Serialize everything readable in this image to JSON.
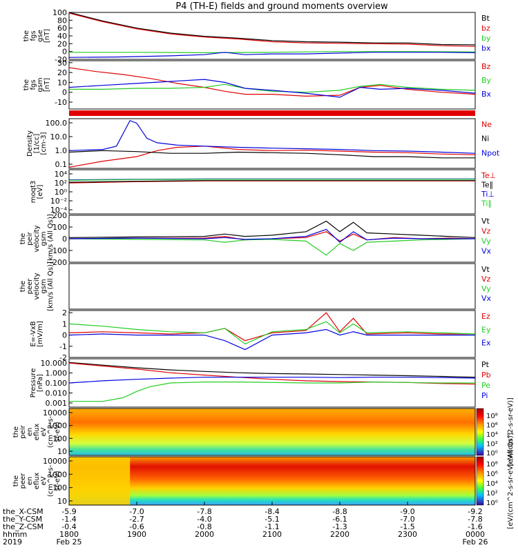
{
  "title": "P4 (TH-E) fields and ground moments overview",
  "chart_data": [
    {
      "id": "fgs_gse",
      "type": "line",
      "ylabel": [
        "the",
        "fgs",
        "gse",
        "[nT]"
      ],
      "ylim": [
        -20,
        100
      ],
      "yticks": [
        100,
        80,
        60,
        40,
        20,
        0,
        -20
      ],
      "series": [
        {
          "name": "Bt",
          "color": "#000000",
          "x": [
            18.0,
            18.5,
            19.0,
            19.5,
            20.0,
            20.5,
            21.0,
            21.5,
            22.0,
            22.5,
            23.0,
            23.5,
            24.0
          ],
          "y": [
            100,
            78,
            60,
            47,
            39,
            34,
            28,
            25,
            24,
            22,
            22,
            18,
            17
          ]
        },
        {
          "name": "bz",
          "color": "#e00000",
          "x": [
            18.0,
            18.5,
            19.0,
            19.5,
            20.0,
            20.5,
            21.0,
            21.5,
            22.0,
            22.5,
            23.0,
            23.5,
            24.0
          ],
          "y": [
            98,
            76,
            58,
            45,
            37,
            32,
            25,
            22,
            21,
            20,
            19,
            15,
            13
          ]
        },
        {
          "name": "by",
          "color": "#22cc22",
          "x": [
            18.0,
            19.0,
            20.0,
            21.0,
            22.0,
            23.0,
            24.0
          ],
          "y": [
            -2,
            -2,
            -3,
            -2,
            0,
            0,
            -1
          ]
        },
        {
          "name": "bx",
          "color": "#0000dd",
          "x": [
            18.0,
            18.7,
            19.0,
            19.5,
            20.0,
            20.3,
            20.6,
            21.0,
            21.5,
            22.0,
            22.5,
            23.0,
            23.5,
            24.0
          ],
          "y": [
            -15,
            -14,
            -13,
            -11,
            -8,
            -2,
            -8,
            -6,
            -6,
            -4,
            -2,
            -2,
            -2,
            -3
          ]
        }
      ]
    },
    {
      "id": "fgs_gsm",
      "type": "line",
      "ylabel": [
        "the",
        "fgs",
        "gsm",
        "[nT]"
      ],
      "ylim": [
        -17,
        32
      ],
      "yticks": [
        30,
        20,
        10,
        0,
        -10
      ],
      "series": [
        {
          "name": "Bz",
          "color": "#e00000",
          "x": [
            18.0,
            18.4,
            18.8,
            19.2,
            19.6,
            20.0,
            20.3,
            20.6,
            21.0,
            21.5,
            22.0,
            22.3,
            22.6,
            23.0,
            23.5,
            24.0
          ],
          "y": [
            25,
            21,
            18,
            14,
            9,
            5,
            1,
            -2,
            -2,
            -4,
            -3,
            5,
            7,
            3,
            0,
            -2
          ]
        },
        {
          "name": "By",
          "color": "#22cc22",
          "x": [
            18.0,
            18.5,
            19.0,
            19.5,
            20.0,
            20.3,
            20.6,
            21.0,
            21.5,
            22.0,
            22.3,
            22.6,
            23.0,
            23.5,
            24.0
          ],
          "y": [
            3,
            3,
            4,
            4,
            5,
            8,
            4,
            1,
            0,
            2,
            6,
            8,
            5,
            3,
            2
          ]
        },
        {
          "name": "Bx",
          "color": "#0000dd",
          "x": [
            18.0,
            18.5,
            19.0,
            19.5,
            20.0,
            20.3,
            20.6,
            21.0,
            21.5,
            22.0,
            22.3,
            22.6,
            23.0,
            23.5,
            24.0
          ],
          "y": [
            5,
            7,
            9,
            11,
            13,
            10,
            4,
            2,
            -1,
            -5,
            5,
            3,
            4,
            2,
            -1
          ]
        }
      ]
    },
    {
      "id": "density",
      "type": "line",
      "yscale": "log",
      "ylabel": [
        "Density",
        "[1/cc]",
        "[cm-3]"
      ],
      "ylim": [
        0.1,
        200
      ],
      "yticks": [
        "100.0",
        "10.0",
        "1.0",
        "0.1"
      ],
      "series": [
        {
          "name": "Ne",
          "color": "#e00000",
          "x": [
            18.0,
            18.5,
            19.0,
            19.3,
            19.6,
            20.0,
            20.5,
            21.0,
            21.5,
            22.0,
            22.5,
            23.0,
            23.5,
            24.0
          ],
          "y": [
            0.12,
            0.3,
            0.6,
            1.5,
            2.5,
            3.0,
            1.8,
            1.5,
            1.6,
            1.4,
            1.2,
            1.1,
            0.9,
            0.8
          ]
        },
        {
          "name": "Ni",
          "color": "#000000",
          "x": [
            18.0,
            18.5,
            19.0,
            19.5,
            20.0,
            20.5,
            21.0,
            21.5,
            22.0,
            22.5,
            23.0,
            23.5,
            24.0
          ],
          "y": [
            1.2,
            1.5,
            1.3,
            1.0,
            1.0,
            1.2,
            1.1,
            1.0,
            0.8,
            0.6,
            0.6,
            0.5,
            0.5
          ]
        },
        {
          "name": "Npot",
          "color": "#0000dd",
          "x": [
            18.0,
            18.5,
            18.7,
            18.9,
            19.0,
            19.15,
            19.3,
            19.6,
            20.0,
            20.5,
            21.0,
            21.5,
            22.0,
            22.5,
            23.0,
            23.5,
            24.0
          ],
          "y": [
            1.5,
            1.8,
            3,
            150,
            100,
            10,
            5,
            3.5,
            3,
            2.5,
            2.2,
            2,
            1.8,
            1.5,
            1.4,
            1.2,
            1.0
          ]
        }
      ]
    },
    {
      "id": "temperature",
      "type": "line",
      "yscale": "log",
      "ylabel": [
        "moqt3",
        "[eV]"
      ],
      "ylim": [
        0.0001,
        1000000
      ],
      "yticks": [
        "10⁴",
        "10²",
        "10⁰",
        "10⁻²",
        "10⁻⁴"
      ],
      "series": [
        {
          "name": "Te⊥",
          "color": "#e00000",
          "x": [
            18.0,
            19.0,
            20.0,
            21.0,
            22.0,
            23.0,
            24.0
          ],
          "y": [
            1000,
            2000,
            3000,
            3000,
            3000,
            3000,
            3000
          ]
        },
        {
          "name": "Te∥",
          "color": "#000000",
          "x": [
            18.0,
            19.0,
            20.0,
            21.0,
            22.0,
            23.0,
            24.0
          ],
          "y": [
            1500,
            2500,
            3500,
            3500,
            3500,
            3500,
            3500
          ]
        },
        {
          "name": "Ti⊥",
          "color": "#0000dd",
          "x": [
            18.0,
            19.0,
            20.0,
            21.0,
            22.0,
            23.0,
            24.0
          ],
          "y": [
            5000,
            7000,
            8000,
            8000,
            8000,
            8000,
            8000
          ]
        },
        {
          "name": "Ti∥",
          "color": "#22cc22",
          "x": [
            18.0,
            19.0,
            20.0,
            21.0,
            22.0,
            23.0,
            24.0
          ],
          "y": [
            4000,
            6000,
            7000,
            7000,
            7000,
            7000,
            7000
          ]
        }
      ]
    },
    {
      "id": "peir_velocity",
      "type": "line",
      "ylabel": [
        "the",
        "peir",
        "velocity",
        "gsm",
        "[km/s (All Qs)]"
      ],
      "ylim": [
        -200,
        200
      ],
      "yticks": [
        200,
        100,
        0,
        -100,
        -200
      ],
      "series": [
        {
          "name": "Vt",
          "color": "#000000",
          "x": [
            18.0,
            19.0,
            20.0,
            20.3,
            20.6,
            21.0,
            21.5,
            21.8,
            22.0,
            22.2,
            22.4,
            22.8,
            23.2,
            23.6,
            24.0
          ],
          "y": [
            10,
            15,
            20,
            40,
            20,
            30,
            60,
            150,
            60,
            140,
            50,
            40,
            30,
            20,
            10
          ]
        },
        {
          "name": "Vz",
          "color": "#e00000",
          "x": [
            18.0,
            19.0,
            20.0,
            20.3,
            20.6,
            21.0,
            21.5,
            21.8,
            22.0,
            22.2,
            22.4,
            22.8,
            23.2,
            23.6,
            24.0
          ],
          "y": [
            0,
            5,
            5,
            20,
            -10,
            0,
            10,
            60,
            -20,
            40,
            -10,
            10,
            0,
            5,
            0
          ]
        },
        {
          "name": "Vy",
          "color": "#22cc22",
          "x": [
            18.0,
            19.0,
            20.0,
            20.3,
            20.6,
            21.0,
            21.5,
            21.8,
            22.0,
            22.2,
            22.4,
            22.8,
            23.2,
            23.6,
            24.0
          ],
          "y": [
            0,
            -5,
            -10,
            -30,
            -10,
            -5,
            -20,
            -140,
            -40,
            -100,
            -30,
            -20,
            -10,
            -5,
            0
          ]
        },
        {
          "name": "Vx",
          "color": "#0000dd",
          "x": [
            18.0,
            19.0,
            20.0,
            20.3,
            20.6,
            21.0,
            21.5,
            21.8,
            22.0,
            22.2,
            22.4,
            22.8,
            23.2,
            23.6,
            24.0
          ],
          "y": [
            0,
            5,
            0,
            10,
            -5,
            0,
            20,
            80,
            -30,
            60,
            -10,
            5,
            0,
            0,
            0
          ]
        }
      ]
    },
    {
      "id": "peer_velocity",
      "type": "line",
      "ylabel": [
        "the",
        "peer",
        "velocity",
        "gsm",
        "[km/s (All Qs)]"
      ],
      "yticks": [],
      "series": [
        {
          "name": "Vt",
          "color": "#000000",
          "x": [],
          "y": []
        },
        {
          "name": "Vz",
          "color": "#e00000",
          "x": [],
          "y": []
        },
        {
          "name": "Vy",
          "color": "#22cc22",
          "x": [],
          "y": []
        },
        {
          "name": "Vx",
          "color": "#0000dd",
          "x": [],
          "y": []
        }
      ]
    },
    {
      "id": "efield",
      "type": "line",
      "ylabel": [
        "E=-VxB",
        "[mV/m]"
      ],
      "ylim": [
        -2,
        2.2
      ],
      "yticks": [
        2,
        1,
        0,
        -1,
        -2
      ],
      "series": [
        {
          "name": "Ez",
          "color": "#e00000",
          "x": [
            18.0,
            18.5,
            19.0,
            19.5,
            20.0,
            20.3,
            20.6,
            21.0,
            21.5,
            21.8,
            22.0,
            22.2,
            22.4,
            23.0,
            23.5,
            24.0
          ],
          "y": [
            0.2,
            0.3,
            0.2,
            0.1,
            0.2,
            0.6,
            -0.5,
            0.2,
            0.4,
            2.0,
            0.3,
            1.5,
            0.1,
            0.2,
            0.1,
            0.1
          ]
        },
        {
          "name": "Ey",
          "color": "#22cc22",
          "x": [
            18.0,
            18.5,
            19.0,
            19.5,
            20.0,
            20.3,
            20.6,
            21.0,
            21.5,
            21.8,
            22.0,
            22.2,
            22.4,
            23.0,
            23.5,
            24.0
          ],
          "y": [
            1.0,
            0.8,
            0.5,
            0.3,
            0.2,
            0.6,
            -0.8,
            0.3,
            0.5,
            1.2,
            0.2,
            1.0,
            0.2,
            0.3,
            0.2,
            0.1
          ]
        },
        {
          "name": "Ex",
          "color": "#0000dd",
          "x": [
            18.0,
            18.5,
            19.0,
            19.5,
            20.0,
            20.3,
            20.6,
            21.0,
            21.5,
            21.8,
            22.0,
            22.2,
            22.4,
            23.0,
            23.5,
            24.0
          ],
          "y": [
            0.0,
            0.1,
            0.0,
            0.0,
            0.0,
            -0.5,
            -1.3,
            0.0,
            0.2,
            0.5,
            0.0,
            0.3,
            0.0,
            0.0,
            0.0,
            0.0
          ]
        }
      ]
    },
    {
      "id": "pressure",
      "type": "line",
      "yscale": "log",
      "ylabel": [
        "Pressure",
        "[nPa]"
      ],
      "ylim": [
        0.001,
        10
      ],
      "yticks": [
        "10.000",
        "1.000",
        "0.100",
        "0.010",
        "0.001"
      ],
      "series": [
        {
          "name": "Pt",
          "color": "#000000",
          "x": [
            18.0,
            18.5,
            19.0,
            19.5,
            20.0,
            20.5,
            21.0,
            21.5,
            22.0,
            22.5,
            23.0,
            23.5,
            24.0
          ],
          "y": [
            5.0,
            3.0,
            1.8,
            1.2,
            0.9,
            0.7,
            0.6,
            0.55,
            0.5,
            0.45,
            0.4,
            0.35,
            0.3
          ]
        },
        {
          "name": "Pb",
          "color": "#e00000",
          "x": [
            18.0,
            18.5,
            19.0,
            19.5,
            20.0,
            20.5,
            21.0,
            21.5,
            22.0,
            22.5,
            23.0,
            23.5,
            24.0
          ],
          "y": [
            4.5,
            2.5,
            1.4,
            0.7,
            0.45,
            0.3,
            0.2,
            0.15,
            0.13,
            0.12,
            0.11,
            0.09,
            0.08
          ]
        },
        {
          "name": "Pe",
          "color": "#22cc22",
          "x": [
            18.0,
            18.5,
            18.8,
            19.0,
            19.2,
            19.5,
            20.0,
            20.5,
            21.0,
            21.5,
            22.0,
            22.5,
            23.0,
            23.5,
            24.0
          ],
          "y": [
            0.003,
            0.003,
            0.006,
            0.02,
            0.05,
            0.1,
            0.12,
            0.12,
            0.11,
            0.1,
            0.1,
            0.12,
            0.11,
            0.1,
            0.1
          ]
        },
        {
          "name": "Pi",
          "color": "#0000dd",
          "x": [
            18.0,
            18.5,
            19.0,
            19.5,
            20.0,
            20.5,
            21.0,
            21.5,
            22.0,
            22.5,
            23.0,
            23.5,
            24.0
          ],
          "y": [
            0.1,
            0.15,
            0.2,
            0.25,
            0.3,
            0.3,
            0.3,
            0.3,
            0.28,
            0.3,
            0.3,
            0.28,
            0.25
          ]
        }
      ]
    },
    {
      "id": "peir_eflux",
      "type": "heatmap",
      "ylabel": [
        "the",
        "peir",
        "en",
        "eflux",
        "eV",
        "(cm^2-s-",
        "sr-eV)"
      ],
      "yscale": "log",
      "ylim": [
        5,
        30000
      ],
      "yticks": [
        "10000",
        "1000",
        "100",
        "10"
      ],
      "colorbar": {
        "label": "[eV/(cm^2-s-sr-eV)]",
        "ticks": [
          "10⁸",
          "10⁶",
          "10⁴",
          "10²",
          "10⁰"
        ]
      }
    },
    {
      "id": "peer_eflux",
      "type": "heatmap",
      "ylabel": [
        "the",
        "peer",
        "en",
        "eflux",
        "eV",
        "(cm^2-s-",
        "sr-eV)"
      ],
      "yscale": "log",
      "ylim": [
        5,
        30000
      ],
      "yticks": [
        "10000",
        "1000",
        "100",
        "10"
      ],
      "colorbar": {
        "label": "[eV/(cm^2-s-sr-eV) (All Qs)]",
        "ticks": [
          "10⁸",
          "10⁶",
          "10⁴",
          "10²",
          "10⁰"
        ]
      }
    }
  ],
  "xaxis": {
    "row_labels": [
      "the_X-CSM",
      "the_Y-CSM",
      "the_Z-CSM",
      "hhmm",
      "2019"
    ],
    "ticks": [
      {
        "t": 18.0,
        "x": "-5.9",
        "y": "-1.4",
        "z": "-0.4",
        "hhmm": "1800",
        "date": "Feb 25"
      },
      {
        "t": 19.0,
        "x": "-7.0",
        "y": "-2.7",
        "z": "-0.6",
        "hhmm": "1900",
        "date": ""
      },
      {
        "t": 20.0,
        "x": "-7.8",
        "y": "-4.0",
        "z": "-0.8",
        "hhmm": "2000",
        "date": ""
      },
      {
        "t": 21.0,
        "x": "-8.4",
        "y": "-5.1",
        "z": "-1.1",
        "hhmm": "2100",
        "date": ""
      },
      {
        "t": 22.0,
        "x": "-8.8",
        "y": "-6.1",
        "z": "-1.3",
        "hhmm": "2200",
        "date": ""
      },
      {
        "t": 23.0,
        "x": "-9.0",
        "y": "-7.0",
        "z": "-1.5",
        "hhmm": "2300",
        "date": ""
      },
      {
        "t": 24.0,
        "x": "-9.2",
        "y": "-7.8",
        "z": "-1.6",
        "hhmm": "0000",
        "date": "Feb 26"
      }
    ],
    "xlim": [
      18.0,
      24.0
    ]
  }
}
